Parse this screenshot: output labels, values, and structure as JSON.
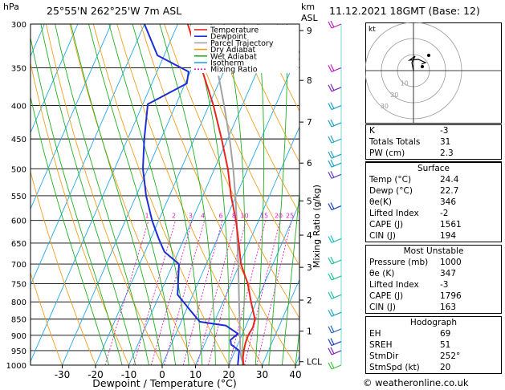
{
  "header": {
    "location": "25°55'N  262°25'W  7m  ASL",
    "datetime": "11.12.2021  18GMT  (Base: 12)",
    "hpa_label": "hPa",
    "km_label": "km",
    "asl_label": "ASL"
  },
  "chart_data": {
    "type": "skew-t",
    "pressure_levels": [
      300,
      350,
      400,
      450,
      500,
      550,
      600,
      650,
      700,
      750,
      800,
      850,
      900,
      950,
      1000
    ],
    "x_ticks": [
      -30,
      -20,
      -10,
      0,
      10,
      20,
      30,
      40
    ],
    "xlabel": "Dewpoint / Temperature (°C)",
    "ylabel_right": "Mixing Ratio (g/kg)",
    "km_ticks": [
      {
        "label": "9",
        "p": 307
      },
      {
        "label": "8",
        "p": 366
      },
      {
        "label": "7",
        "p": 424
      },
      {
        "label": "6",
        "p": 490
      },
      {
        "label": "5",
        "p": 560
      },
      {
        "label": "4",
        "p": 632
      },
      {
        "label": "3",
        "p": 708
      },
      {
        "label": "2",
        "p": 795
      },
      {
        "label": "1",
        "p": 887
      },
      {
        "label": "LCL",
        "p": 988
      }
    ],
    "mixing_ratio_labels": [
      "1",
      "2",
      "3",
      "4",
      "6",
      "8",
      "10",
      "15",
      "20",
      "25"
    ],
    "legend": [
      "Temperature",
      "Dewpoint",
      "Parcel Trajectory",
      "Dry Adiabat",
      "Wet Adiabat",
      "Isotherm",
      "Mixing Ratio"
    ],
    "colors": {
      "temperature": "#e8251f",
      "dewpoint": "#1c2fd6",
      "parcel": "#a3a3a3",
      "dry_adiabat": "#f0a020",
      "wet_adiabat": "#20b020",
      "isotherm": "#20a8e8",
      "mixing_ratio": "#e020c0"
    },
    "temperature_profile": [
      {
        "p": 1000,
        "t": 24.4
      },
      {
        "p": 975,
        "t": 23.3
      },
      {
        "p": 950,
        "t": 22.6
      },
      {
        "p": 925,
        "t": 22.1
      },
      {
        "p": 900,
        "t": 21.9
      },
      {
        "p": 875,
        "t": 22.3
      },
      {
        "p": 850,
        "t": 21.8
      },
      {
        "p": 800,
        "t": 18.4
      },
      {
        "p": 750,
        "t": 15.0
      },
      {
        "p": 700,
        "t": 10.4
      },
      {
        "p": 650,
        "t": 7.0
      },
      {
        "p": 600,
        "t": 3.2
      },
      {
        "p": 550,
        "t": -1.5
      },
      {
        "p": 500,
        "t": -6.0
      },
      {
        "p": 450,
        "t": -11.8
      },
      {
        "p": 400,
        "t": -18.6
      },
      {
        "p": 350,
        "t": -27.2
      },
      {
        "p": 300,
        "t": -37.0
      }
    ],
    "dewpoint_profile": [
      {
        "p": 1000,
        "t": 22.7
      },
      {
        "p": 950,
        "t": 21.2
      },
      {
        "p": 930,
        "t": 18.0
      },
      {
        "p": 915,
        "t": 17.2
      },
      {
        "p": 895,
        "t": 18.6
      },
      {
        "p": 870,
        "t": 14.0
      },
      {
        "p": 858,
        "t": 5.6
      },
      {
        "p": 830,
        "t": 2.0
      },
      {
        "p": 780,
        "t": -4.6
      },
      {
        "p": 700,
        "t": -8.2
      },
      {
        "p": 670,
        "t": -14.2
      },
      {
        "p": 640,
        "t": -17.6
      },
      {
        "p": 600,
        "t": -22.0
      },
      {
        "p": 550,
        "t": -27.0
      },
      {
        "p": 500,
        "t": -31.5
      },
      {
        "p": 450,
        "t": -35.0
      },
      {
        "p": 398,
        "t": -38.5
      },
      {
        "p": 370,
        "t": -29.5
      },
      {
        "p": 355,
        "t": -30.5
      },
      {
        "p": 335,
        "t": -42.0
      },
      {
        "p": 300,
        "t": -50.0
      }
    ],
    "parcel_profile": [
      {
        "p": 1000,
        "t": 24.4
      },
      {
        "p": 975,
        "t": 22.8
      },
      {
        "p": 950,
        "t": 21.6
      },
      {
        "p": 900,
        "t": 19.4
      },
      {
        "p": 850,
        "t": 17.2
      },
      {
        "p": 800,
        "t": 14.8
      },
      {
        "p": 750,
        "t": 12.3
      },
      {
        "p": 700,
        "t": 9.6
      },
      {
        "p": 650,
        "t": 6.6
      },
      {
        "p": 600,
        "t": 3.4
      },
      {
        "p": 550,
        "t": -0.2
      },
      {
        "p": 500,
        "t": -4.4
      },
      {
        "p": 450,
        "t": -9.4
      },
      {
        "p": 400,
        "t": -15.4
      },
      {
        "p": 360,
        "t": -21.0
      }
    ]
  },
  "indices": {
    "rows": [
      {
        "label": "K",
        "value": "-3"
      },
      {
        "label": "Totals Totals",
        "value": "31"
      },
      {
        "label": "PW (cm)",
        "value": "2.3"
      }
    ]
  },
  "surface": {
    "title": "Surface",
    "rows": [
      {
        "label": "Temp (°C)",
        "value": "24.4"
      },
      {
        "label": "Dewp (°C)",
        "value": "22.7"
      },
      {
        "label": "θe(K)",
        "value": "346"
      },
      {
        "label": "Lifted Index",
        "value": "-2"
      },
      {
        "label": "CAPE (J)",
        "value": "1561"
      },
      {
        "label": "CIN (J)",
        "value": "194"
      }
    ]
  },
  "most_unstable": {
    "title": "Most Unstable",
    "rows": [
      {
        "label": "Pressure (mb)",
        "value": "1000"
      },
      {
        "label": "θe (K)",
        "value": "347"
      },
      {
        "label": "Lifted Index",
        "value": "-3"
      },
      {
        "label": "CAPE (J)",
        "value": "1796"
      },
      {
        "label": "CIN (J)",
        "value": "163"
      }
    ]
  },
  "hodograph_table": {
    "title": "Hodograph",
    "rows": [
      {
        "label": "EH",
        "value": "69"
      },
      {
        "label": "SREH",
        "value": "51"
      },
      {
        "label": "StmDir",
        "value": "252°"
      },
      {
        "label": "StmSpd (kt)",
        "value": "20"
      }
    ]
  },
  "hodograph": {
    "unit_label": "kt",
    "ring_labels": [
      "10",
      "20",
      "30"
    ]
  },
  "footer": {
    "copyright": "© weatheronline.co.uk"
  }
}
